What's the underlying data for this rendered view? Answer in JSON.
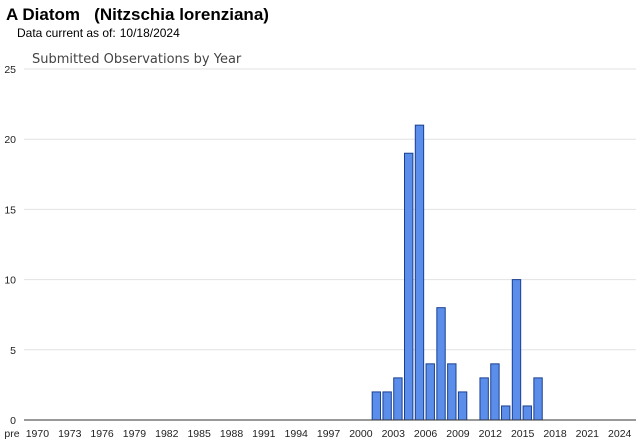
{
  "header": {
    "common_name": "A Diatom",
    "scientific_name": "(Nitzschia lorenziana)",
    "currency_label": "Data current as of:",
    "currency_date": "10/18/2024"
  },
  "chart_data": {
    "type": "bar",
    "title": "Submitted Observations by Year",
    "xlabel": "",
    "ylabel": "",
    "ylim": [
      0,
      25
    ],
    "yticks": [
      0,
      5,
      10,
      15,
      20,
      25
    ],
    "grid": true,
    "categories": [
      "pre 1970",
      "1970",
      "1971",
      "1972",
      "1973",
      "1974",
      "1975",
      "1976",
      "1977",
      "1978",
      "1979",
      "1980",
      "1981",
      "1982",
      "1983",
      "1984",
      "1985",
      "1986",
      "1987",
      "1988",
      "1989",
      "1990",
      "1991",
      "1992",
      "1993",
      "1994",
      "1995",
      "1996",
      "1997",
      "1998",
      "1999",
      "2000",
      "2001",
      "2002",
      "2003",
      "2004",
      "2005",
      "2006",
      "2007",
      "2008",
      "2009",
      "2010",
      "2011",
      "2012",
      "2013",
      "2014",
      "2015",
      "2016",
      "2017",
      "2018",
      "2019",
      "2020",
      "2021",
      "2022",
      "2023",
      "2024"
    ],
    "xtick_labels": [
      "pre",
      "1970",
      "1973",
      "1976",
      "1979",
      "1982",
      "1985",
      "1988",
      "1991",
      "1994",
      "1997",
      "2000",
      "2003",
      "2006",
      "2009",
      "2012",
      "2015",
      "2018",
      "2021",
      "2024"
    ],
    "values": [
      0,
      0,
      0,
      0,
      0,
      0,
      0,
      0,
      0,
      0,
      0,
      0,
      0,
      0,
      0,
      0,
      0,
      0,
      0,
      0,
      0,
      0,
      0,
      0,
      0,
      0,
      0,
      0,
      0,
      0,
      0,
      0,
      2,
      2,
      3,
      19,
      21,
      4,
      8,
      4,
      2,
      0,
      3,
      4,
      1,
      10,
      1,
      3,
      0,
      0,
      0,
      0,
      0,
      0,
      0,
      0
    ],
    "bar_color": "#5b8eea",
    "bar_stroke": "#1a3f8f"
  }
}
